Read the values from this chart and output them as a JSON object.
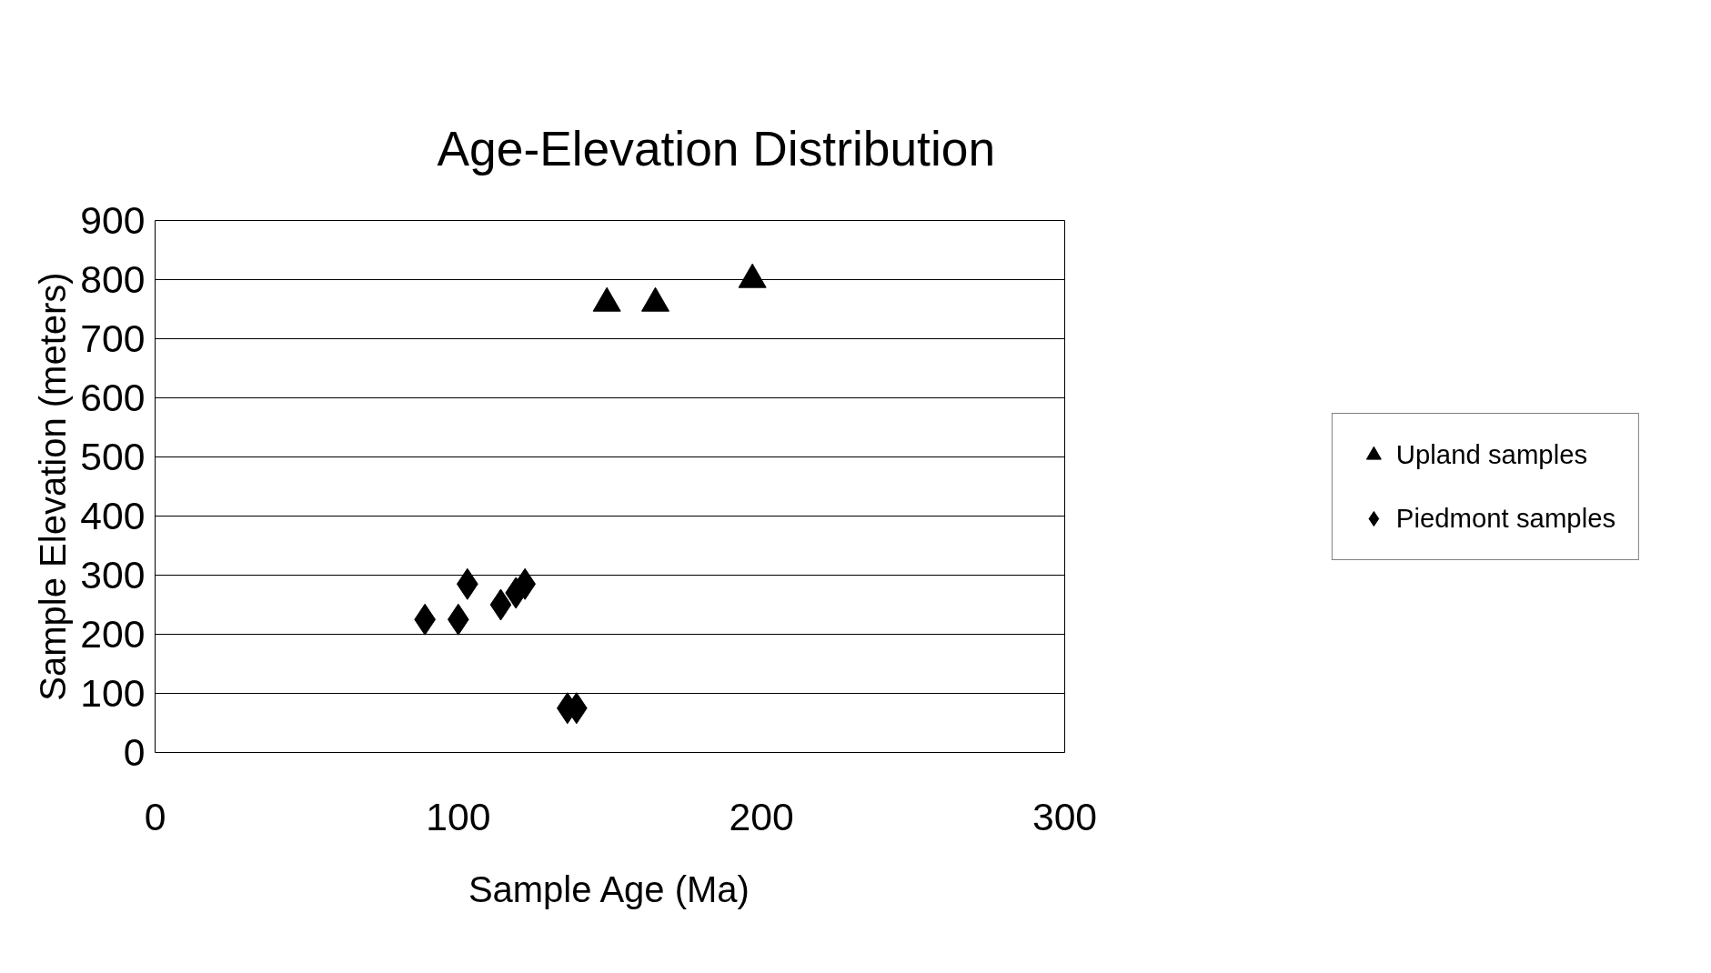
{
  "chart_data": {
    "type": "scatter",
    "title": "Age-Elevation Distribution",
    "xlabel": "Sample Age (Ma)",
    "ylabel": "Sample Elevation (meters)",
    "xlim": [
      0,
      300
    ],
    "xticks": [
      0,
      100,
      200,
      300
    ],
    "ylim": [
      0,
      900
    ],
    "yticks": [
      0,
      100,
      200,
      300,
      400,
      500,
      600,
      700,
      800,
      900
    ],
    "grid": "y",
    "legend": "right",
    "series": [
      {
        "name": "Upland samples",
        "color": "#000000",
        "marker": "triangle",
        "x": [
          149,
          165,
          197
        ],
        "values": [
          760,
          760,
          800
        ]
      },
      {
        "name": "Piedmont samples",
        "color": "#000000",
        "marker": "diamond",
        "x": [
          89,
          100,
          103,
          114,
          119,
          122,
          136,
          139
        ],
        "values": [
          225,
          225,
          285,
          250,
          270,
          285,
          75,
          75
        ]
      }
    ]
  }
}
